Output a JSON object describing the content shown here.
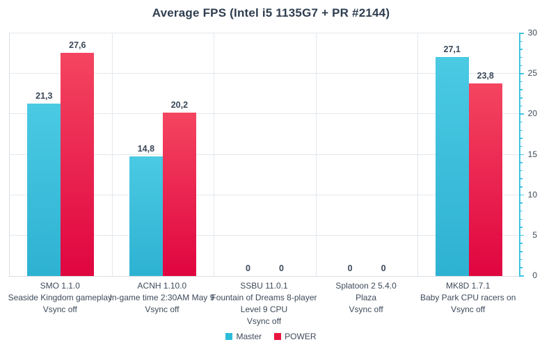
{
  "chart_data": {
    "type": "bar",
    "title": "Average FPS (Intel i5 1135G7 + PR #2144)",
    "categories": [
      [
        "SMO 1.1.0",
        "Seaside Kingdom gameplay",
        "Vsync off"
      ],
      [
        "ACNH 1.10.0",
        "In-game time 2:30AM May 9",
        "Vsync off"
      ],
      [
        "SSBU 11.0.1",
        "Fountain of Dreams 8-player",
        "Level 9 CPU",
        "Vsync off"
      ],
      [
        "Splatoon 2 5.4.0",
        "Plaza",
        "Vsync off"
      ],
      [
        "MK8D 1.7.1",
        "Baby Park CPU racers on",
        "Vsync off"
      ]
    ],
    "series": [
      {
        "name": "Master",
        "values": [
          21.3,
          14.8,
          0,
          0,
          27.1
        ],
        "labels": [
          "21,3",
          "14,8",
          "0",
          "0",
          "27,1"
        ],
        "color_top": "#4ACAE3",
        "color_bottom": "#2EB2D2",
        "legend_color": "#2CBCD9"
      },
      {
        "name": "POWER",
        "values": [
          27.6,
          20.2,
          0,
          0,
          23.8
        ],
        "labels": [
          "27,6",
          "20,2",
          "0",
          "0",
          "23,8"
        ],
        "color_top": "#F44560",
        "color_bottom": "#E00540",
        "legend_color": "#E8153E"
      }
    ],
    "ylim": [
      0,
      30
    ],
    "y_major_step": 5,
    "y_minor_step": 1,
    "y_ticks": [
      "0",
      "5",
      "10",
      "15",
      "20",
      "25",
      "30"
    ],
    "axis_color": "#3FC3E0",
    "grid_color": "#E3E8EC",
    "grid": "on",
    "legend_position": "bottom",
    "xlabel": "",
    "ylabel": ""
  }
}
